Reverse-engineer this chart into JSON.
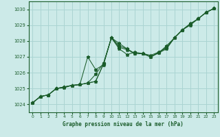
{
  "title": "Graphe pression niveau de la mer (hPa)",
  "bg_color": "#cceae8",
  "grid_color": "#aad4d2",
  "line_color": "#1a5c2a",
  "xlim": [
    -0.5,
    23.5
  ],
  "ylim": [
    1023.5,
    1030.5
  ],
  "yticks": [
    1024,
    1025,
    1026,
    1027,
    1028,
    1029,
    1030
  ],
  "xticks": [
    0,
    1,
    2,
    3,
    4,
    5,
    6,
    7,
    8,
    9,
    10,
    11,
    12,
    13,
    14,
    15,
    16,
    17,
    18,
    19,
    20,
    21,
    22,
    23
  ],
  "series": [
    [
      1024.1,
      1024.5,
      1024.6,
      1025.0,
      1025.05,
      1025.2,
      1025.25,
      1025.35,
      1025.45,
      1026.55,
      1028.2,
      1027.85,
      1027.5,
      1027.2,
      1027.2,
      1027.0,
      1027.25,
      1027.5,
      1028.2,
      1028.7,
      1029.0,
      1029.4,
      1029.8,
      1030.05
    ],
    [
      1024.1,
      1024.5,
      1024.6,
      1025.0,
      1025.1,
      1025.2,
      1025.25,
      1027.0,
      1026.2,
      1026.5,
      1028.2,
      1027.5,
      1027.15,
      1027.3,
      1027.2,
      1027.0,
      1027.25,
      1027.7,
      1028.2,
      1028.7,
      1029.1,
      1029.4,
      1029.8,
      1030.05
    ],
    [
      1024.1,
      1024.5,
      1024.6,
      1025.0,
      1025.1,
      1025.2,
      1025.25,
      1025.35,
      1025.45,
      1026.55,
      1028.2,
      1027.6,
      1027.45,
      1027.2,
      1027.2,
      1027.1,
      1027.3,
      1027.6,
      1028.2,
      1028.7,
      1029.05,
      1029.4,
      1029.8,
      1030.05
    ],
    [
      1024.1,
      1024.5,
      1024.6,
      1025.0,
      1025.1,
      1025.2,
      1025.25,
      1025.35,
      1025.9,
      1026.6,
      1028.2,
      1027.7,
      1027.5,
      1027.2,
      1027.2,
      1027.0,
      1027.3,
      1027.55,
      1028.2,
      1028.7,
      1029.05,
      1029.4,
      1029.8,
      1030.05
    ]
  ]
}
